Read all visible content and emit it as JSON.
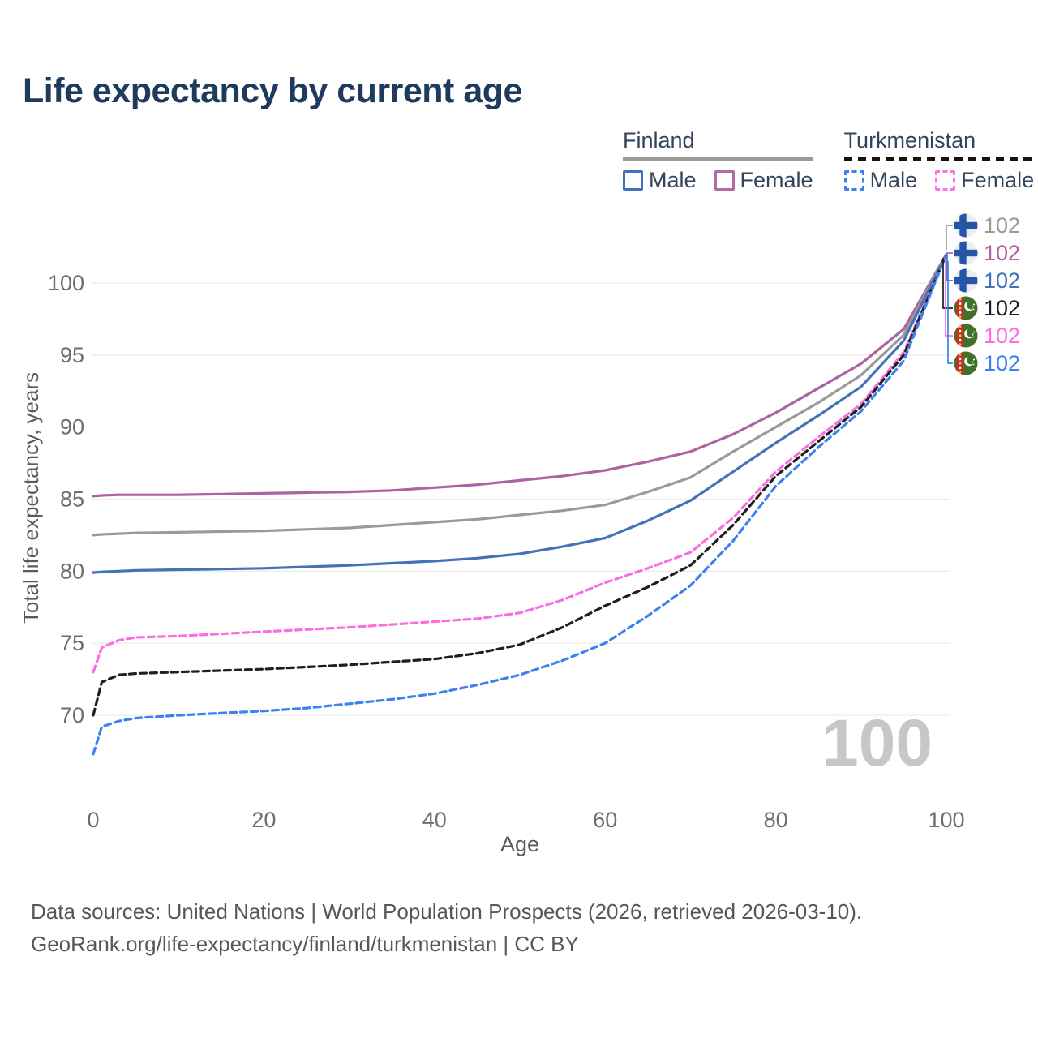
{
  "title": "Life expectancy by current age",
  "legend": {
    "groups": [
      {
        "name": "Finland",
        "line_style": "solid",
        "underline_color": "#9a9a9a",
        "items": [
          {
            "label": "Male",
            "color": "#4472b8",
            "dashed": false
          },
          {
            "label": "Female",
            "color": "#b06aa5",
            "dashed": false
          }
        ]
      },
      {
        "name": "Turkmenistan",
        "line_style": "dashed",
        "underline_color": "#141414",
        "items": [
          {
            "label": "Male",
            "color": "#3b82f0",
            "dashed": true
          },
          {
            "label": "Female",
            "color": "#fb74e4",
            "dashed": true
          }
        ]
      }
    ]
  },
  "chart_data": {
    "type": "line",
    "title": "Life expectancy by current age",
    "xlabel": "Age",
    "ylabel": "Total life expectancy, years",
    "xticks": [
      0,
      20,
      40,
      60,
      80,
      100
    ],
    "yticks": [
      70,
      75,
      80,
      85,
      90,
      95,
      100
    ],
    "xlim": [
      0,
      100
    ],
    "ylim": [
      66,
      103
    ],
    "grid": "horizontal",
    "watermark": "100",
    "x": [
      0,
      1,
      3,
      5,
      10,
      15,
      20,
      25,
      30,
      35,
      40,
      45,
      50,
      55,
      60,
      65,
      70,
      75,
      80,
      85,
      90,
      95,
      100
    ],
    "series": [
      {
        "name": "Finland Female",
        "color": "#ad62a2",
        "dashed": false,
        "values": [
          85.2,
          85.25,
          85.3,
          85.3,
          85.3,
          85.35,
          85.4,
          85.45,
          85.5,
          85.6,
          85.8,
          86.0,
          86.3,
          86.6,
          87.0,
          87.6,
          88.3,
          89.5,
          91.0,
          92.7,
          94.4,
          96.8,
          102
        ]
      },
      {
        "name": "Finland",
        "color": "#9a9a9a",
        "dashed": false,
        "values": [
          82.5,
          82.55,
          82.6,
          82.65,
          82.7,
          82.75,
          82.8,
          82.9,
          83.0,
          83.2,
          83.4,
          83.6,
          83.9,
          84.2,
          84.6,
          85.5,
          86.5,
          88.3,
          90.0,
          91.7,
          93.6,
          96.4,
          102
        ]
      },
      {
        "name": "Finland Male",
        "color": "#4472b8",
        "dashed": false,
        "values": [
          79.9,
          79.95,
          80.0,
          80.05,
          80.1,
          80.15,
          80.2,
          80.3,
          80.4,
          80.55,
          80.7,
          80.9,
          81.2,
          81.7,
          82.3,
          83.5,
          84.9,
          86.9,
          88.9,
          90.8,
          92.8,
          96.0,
          102
        ]
      },
      {
        "name": "Turkmenistan Female",
        "color": "#fb6ee0",
        "dashed": true,
        "values": [
          73.0,
          74.7,
          75.2,
          75.4,
          75.5,
          75.65,
          75.8,
          75.95,
          76.1,
          76.3,
          76.5,
          76.7,
          77.1,
          78.0,
          79.2,
          80.2,
          81.3,
          83.7,
          86.9,
          89.3,
          91.6,
          95.2,
          102
        ]
      },
      {
        "name": "Turkmenistan",
        "color": "#1f1f1f",
        "dashed": true,
        "values": [
          70.0,
          72.3,
          72.8,
          72.9,
          73.0,
          73.1,
          73.2,
          73.35,
          73.5,
          73.7,
          73.9,
          74.3,
          74.9,
          76.1,
          77.6,
          78.9,
          80.4,
          83.2,
          86.6,
          89.0,
          91.4,
          95.0,
          102
        ]
      },
      {
        "name": "Turkmenistan Male",
        "color": "#3b82f0",
        "dashed": true,
        "values": [
          67.3,
          69.2,
          69.6,
          69.8,
          70.0,
          70.15,
          70.3,
          70.5,
          70.8,
          71.1,
          71.5,
          72.1,
          72.8,
          73.8,
          75.0,
          76.9,
          79.0,
          82.1,
          85.9,
          88.6,
          91.1,
          94.6,
          102
        ]
      }
    ]
  },
  "right_labels": [
    {
      "series": "Finland",
      "value": "102",
      "color": "#9a9a9a",
      "flag": "finland"
    },
    {
      "series": "Finland Female",
      "value": "102",
      "color": "#ad62a2",
      "flag": "finland"
    },
    {
      "series": "Finland Male",
      "value": "102",
      "color": "#4472b8",
      "flag": "finland"
    },
    {
      "series": "Turkmenistan",
      "value": "102",
      "color": "#1f1f1f",
      "flag": "turkmenistan"
    },
    {
      "series": "Turkmenistan Female",
      "value": "102",
      "color": "#fb6ee0",
      "flag": "turkmenistan"
    },
    {
      "series": "Turkmenistan Male",
      "value": "102",
      "color": "#3b82f0",
      "flag": "turkmenistan"
    }
  ],
  "footer": {
    "line1": "Data sources: United Nations | World Population Prospects (2026, retrieved 2026-03-10).",
    "line2": "GeoRank.org/life-expectancy/finland/turkmenistan | CC BY"
  }
}
